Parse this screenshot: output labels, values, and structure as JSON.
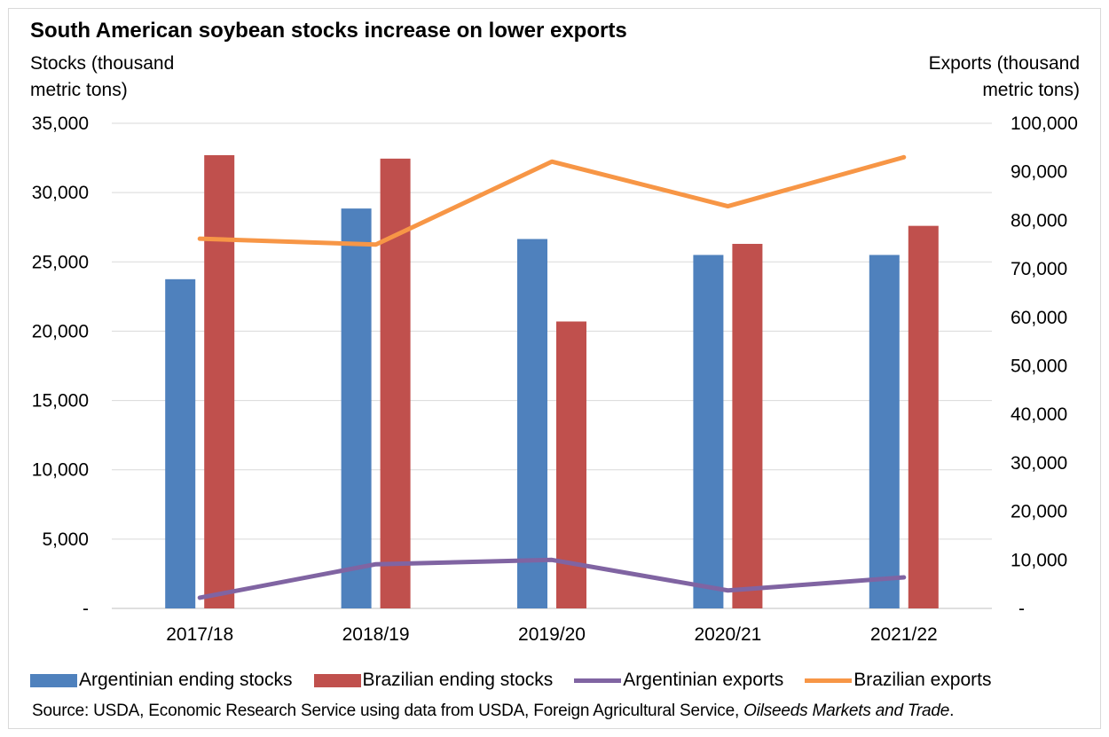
{
  "chart_data": {
    "type": "bar",
    "title": "South American soybean stocks increase on lower exports",
    "ylabel_left": "Stocks (thousand\nmetric tons)",
    "ylabel_right": "Exports (thousand\nmetric tons)",
    "categories": [
      "2017/18",
      "2018/19",
      "2019/20",
      "2020/21",
      "2021/22"
    ],
    "ylim_left": [
      0,
      35000
    ],
    "ylim_right": [
      0,
      100000
    ],
    "yticks_left": [
      "-",
      "5,000",
      "10,000",
      "15,000",
      "20,000",
      "25,000",
      "30,000",
      "35,000"
    ],
    "yticks_right": [
      "-",
      "10,000",
      "20,000",
      "30,000",
      "40,000",
      "50,000",
      "60,000",
      "70,000",
      "80,000",
      "90,000",
      "100,000"
    ],
    "grid": true,
    "legend_position": "bottom",
    "series": [
      {
        "name": "Argentinian ending stocks",
        "kind": "bar",
        "axis": "left",
        "color": "#4f81bd",
        "values": [
          23750,
          28850,
          26650,
          25500,
          25500
        ]
      },
      {
        "name": "Brazilian ending stocks",
        "kind": "bar",
        "axis": "left",
        "color": "#c0504d",
        "values": [
          32700,
          32450,
          20700,
          26300,
          27600
        ]
      },
      {
        "name": "Argentinian exports",
        "kind": "line",
        "axis": "right",
        "color": "#8064a2",
        "values": [
          2200,
          9100,
          10000,
          3700,
          6400
        ]
      },
      {
        "name": "Brazilian exports",
        "kind": "line",
        "axis": "right",
        "color": "#f79646",
        "values": [
          76200,
          75000,
          92100,
          82900,
          93000
        ]
      }
    ],
    "source_prefix": "Source: USDA, Economic Research Service using data from USDA, Foreign Agricultural Service, ",
    "source_italic": "Oilseeds Markets and Trade",
    "source_suffix": "."
  }
}
